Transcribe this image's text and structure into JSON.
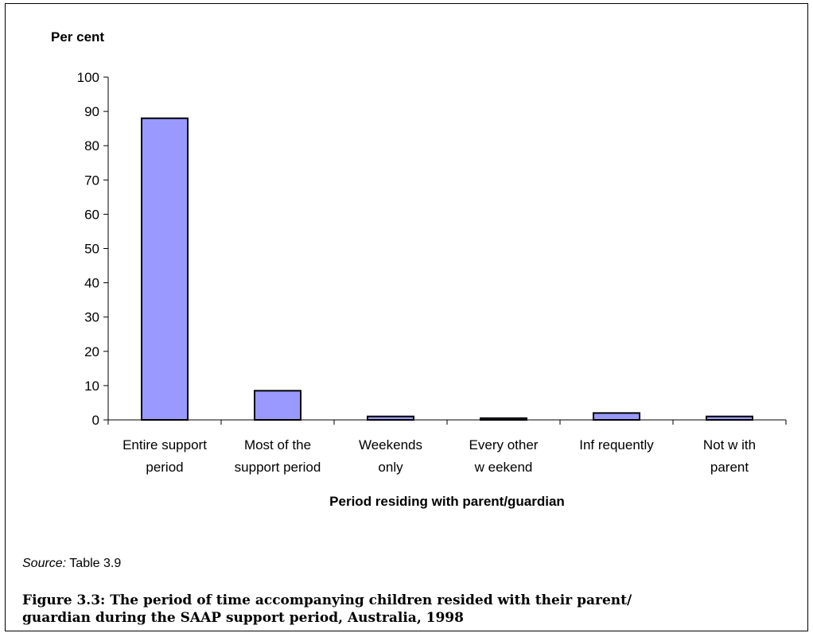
{
  "chart_data": {
    "type": "bar",
    "title": "",
    "ylabel": "Per cent",
    "xlabel": "Period residing with parent/guardian",
    "ylim": [
      0,
      100
    ],
    "yticks": [
      0,
      10,
      20,
      30,
      40,
      50,
      60,
      70,
      80,
      90,
      100
    ],
    "categories": [
      [
        "Entire support",
        "period"
      ],
      [
        "Most of the",
        "support period"
      ],
      [
        "Weekends",
        "only"
      ],
      [
        "Every other",
        "w eekend"
      ],
      [
        "Inf requently"
      ],
      [
        "Not w ith",
        "parent"
      ]
    ],
    "values": [
      88,
      8.5,
      1,
      0.5,
      2,
      1
    ],
    "grid": false,
    "legend": "none",
    "colors": {
      "bar_fill": "#9999ff",
      "bar_stroke": "#000000",
      "axis": "#000000"
    }
  },
  "source": {
    "label": "Source:",
    "text": " Table 3.9"
  },
  "caption": {
    "line1": "Figure 3.3: The period of time accompanying children resided with their parent/",
    "line2": "guardian during the SAAP support period, Australia, 1998"
  }
}
